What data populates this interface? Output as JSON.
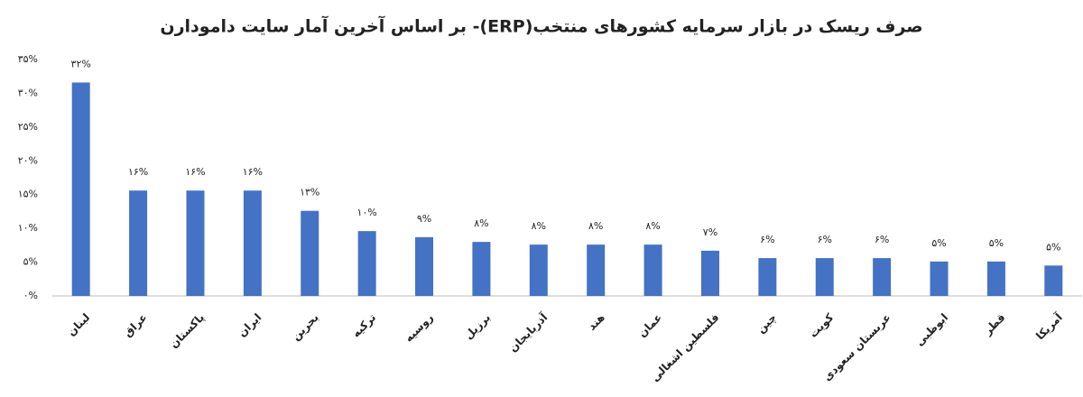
{
  "chart_data": {
    "type": "bar",
    "title": "صرف ریسک در بازار سرمایه کشورهای منتخب(ERP)- بر اساس آخرین آمار سایت دامودارن",
    "categories": [
      "لبنان",
      "عراق",
      "پاکستان",
      "ایران",
      "بحرین",
      "ترکیه",
      "روسیه",
      "برزیل",
      "آذربایجان",
      "هند",
      "عمان",
      "فلسطین اشغالی",
      "چین",
      "کویت",
      "عربستان سعودی",
      "ابوظبی",
      "قطر",
      "آمریکا"
    ],
    "values": [
      31.6,
      15.6,
      15.6,
      15.6,
      12.6,
      9.6,
      8.7,
      8.0,
      7.6,
      7.6,
      7.6,
      6.7,
      5.6,
      5.6,
      5.6,
      5.1,
      5.1,
      4.5
    ],
    "value_labels": [
      "۳۲%",
      "۱۶%",
      "۱۶%",
      "۱۶%",
      "۱۳%",
      "۱۰%",
      "۹%",
      "۸%",
      "۸%",
      "۸%",
      "۸%",
      "۷%",
      "۶%",
      "۶%",
      "۶%",
      "۵%",
      "۵%",
      "۵%"
    ],
    "color": "#4472c4",
    "ylim": [
      0,
      35
    ],
    "yticks": [
      {
        "value": 0,
        "label": "۰%"
      },
      {
        "value": 5,
        "label": "۵%"
      },
      {
        "value": 10,
        "label": "۱۰%"
      },
      {
        "value": 15,
        "label": "۱۵%"
      },
      {
        "value": 20,
        "label": "۲۰%"
      },
      {
        "value": 25,
        "label": "۲۵%"
      },
      {
        "value": 30,
        "label": "۳۰%"
      },
      {
        "value": 35,
        "label": "۳۵%"
      }
    ],
    "grid": false
  }
}
